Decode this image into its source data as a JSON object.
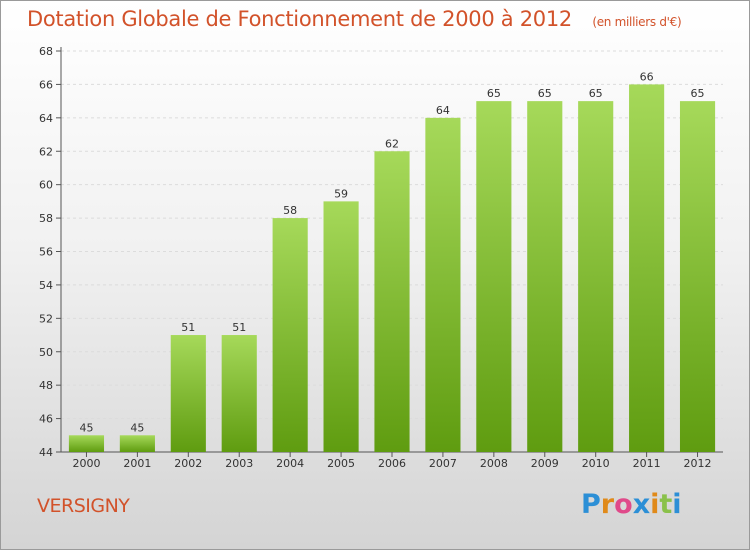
{
  "header": {
    "title": "Dotation Globale de Fonctionnement de 2000 à 2012",
    "subtitle": "(en milliers d'€)"
  },
  "commune": "VERSIGNY",
  "logo": {
    "letters": [
      "P",
      "r",
      "o",
      "x",
      "i",
      "t",
      "i"
    ],
    "colors": [
      "#2c8fd6",
      "#e08a1a",
      "#e04a8a",
      "#2c8fd6",
      "#e08a1a",
      "#8ac14a",
      "#2c8fd6"
    ]
  },
  "colors": {
    "bar_top": "#a6d95a",
    "bar_bottom": "#5f9c10",
    "text_accent": "#d2522a"
  },
  "chart_data": {
    "type": "bar",
    "categories": [
      "2000",
      "2001",
      "2002",
      "2003",
      "2004",
      "2005",
      "2006",
      "2007",
      "2008",
      "2009",
      "2010",
      "2011",
      "2012"
    ],
    "values": [
      45,
      45,
      51,
      51,
      58,
      59,
      62,
      64,
      65,
      65,
      65,
      66,
      65
    ],
    "ylim": [
      44,
      68
    ],
    "yticks": [
      44,
      46,
      48,
      50,
      52,
      54,
      56,
      58,
      60,
      62,
      64,
      66,
      68
    ],
    "grid": true
  }
}
